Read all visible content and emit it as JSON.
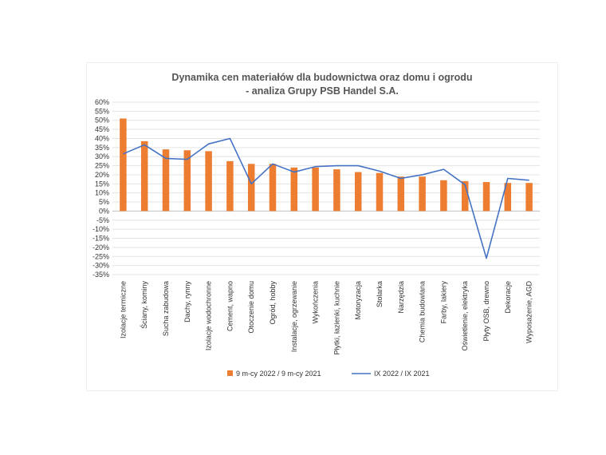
{
  "chart_data": {
    "type": "bar",
    "title": [
      "Dynamika cen materiałów dla budownictwa oraz domu i ogrodu",
      "- analiza Grupy PSB Handel S.A."
    ],
    "categories": [
      "Izolacje termiczne",
      "Ściany, kominy",
      "Sucha zabudowa",
      "Dachy, rynny",
      "Izolacje wodochronne",
      "Cement, wapno",
      "Otoczenie domu",
      "Ogród, hobby",
      "Instalacje, ogrzewanie",
      "Wykończenia",
      "Płytki, łazienki, kuchnie",
      "Motoryzacja",
      "Stolarka",
      "Narzędzia",
      "Chemia budowlana",
      "Farby, lakiery",
      "Oświetlenie, elektryka",
      "Płyty OSB, drewno",
      "Dekoracje",
      "Wyposażenie, AGD"
    ],
    "series": [
      {
        "name": "9 m-cy 2022 / 9 m-cy 2021",
        "kind": "bar",
        "color": "#ED7D31",
        "values": [
          51,
          38.5,
          34,
          33.5,
          33,
          27.5,
          26,
          26,
          24,
          24,
          23,
          21.5,
          21,
          19,
          19,
          17,
          16.5,
          16,
          15.5,
          15.5
        ]
      },
      {
        "name": "IX 2022 / IX 2021",
        "kind": "line",
        "color": "#4472C4",
        "values": [
          31.5,
          36.5,
          29,
          28.5,
          37,
          40,
          15,
          26,
          21.5,
          24.5,
          25,
          25,
          22,
          18,
          20,
          23,
          14.5,
          -26,
          18,
          17
        ]
      }
    ],
    "y_ticks": [
      "60%",
      "55%",
      "50%",
      "45%",
      "40%",
      "35%",
      "30%",
      "25%",
      "20%",
      "15%",
      "10%",
      "5%",
      "0%",
      "-5%",
      "-10%",
      "-15%",
      "-20%",
      "-25%",
      "-30%",
      "-35%"
    ],
    "ylim": [
      -35,
      60
    ],
    "ytick_step": 5,
    "grid": true,
    "legend": "bottom"
  }
}
